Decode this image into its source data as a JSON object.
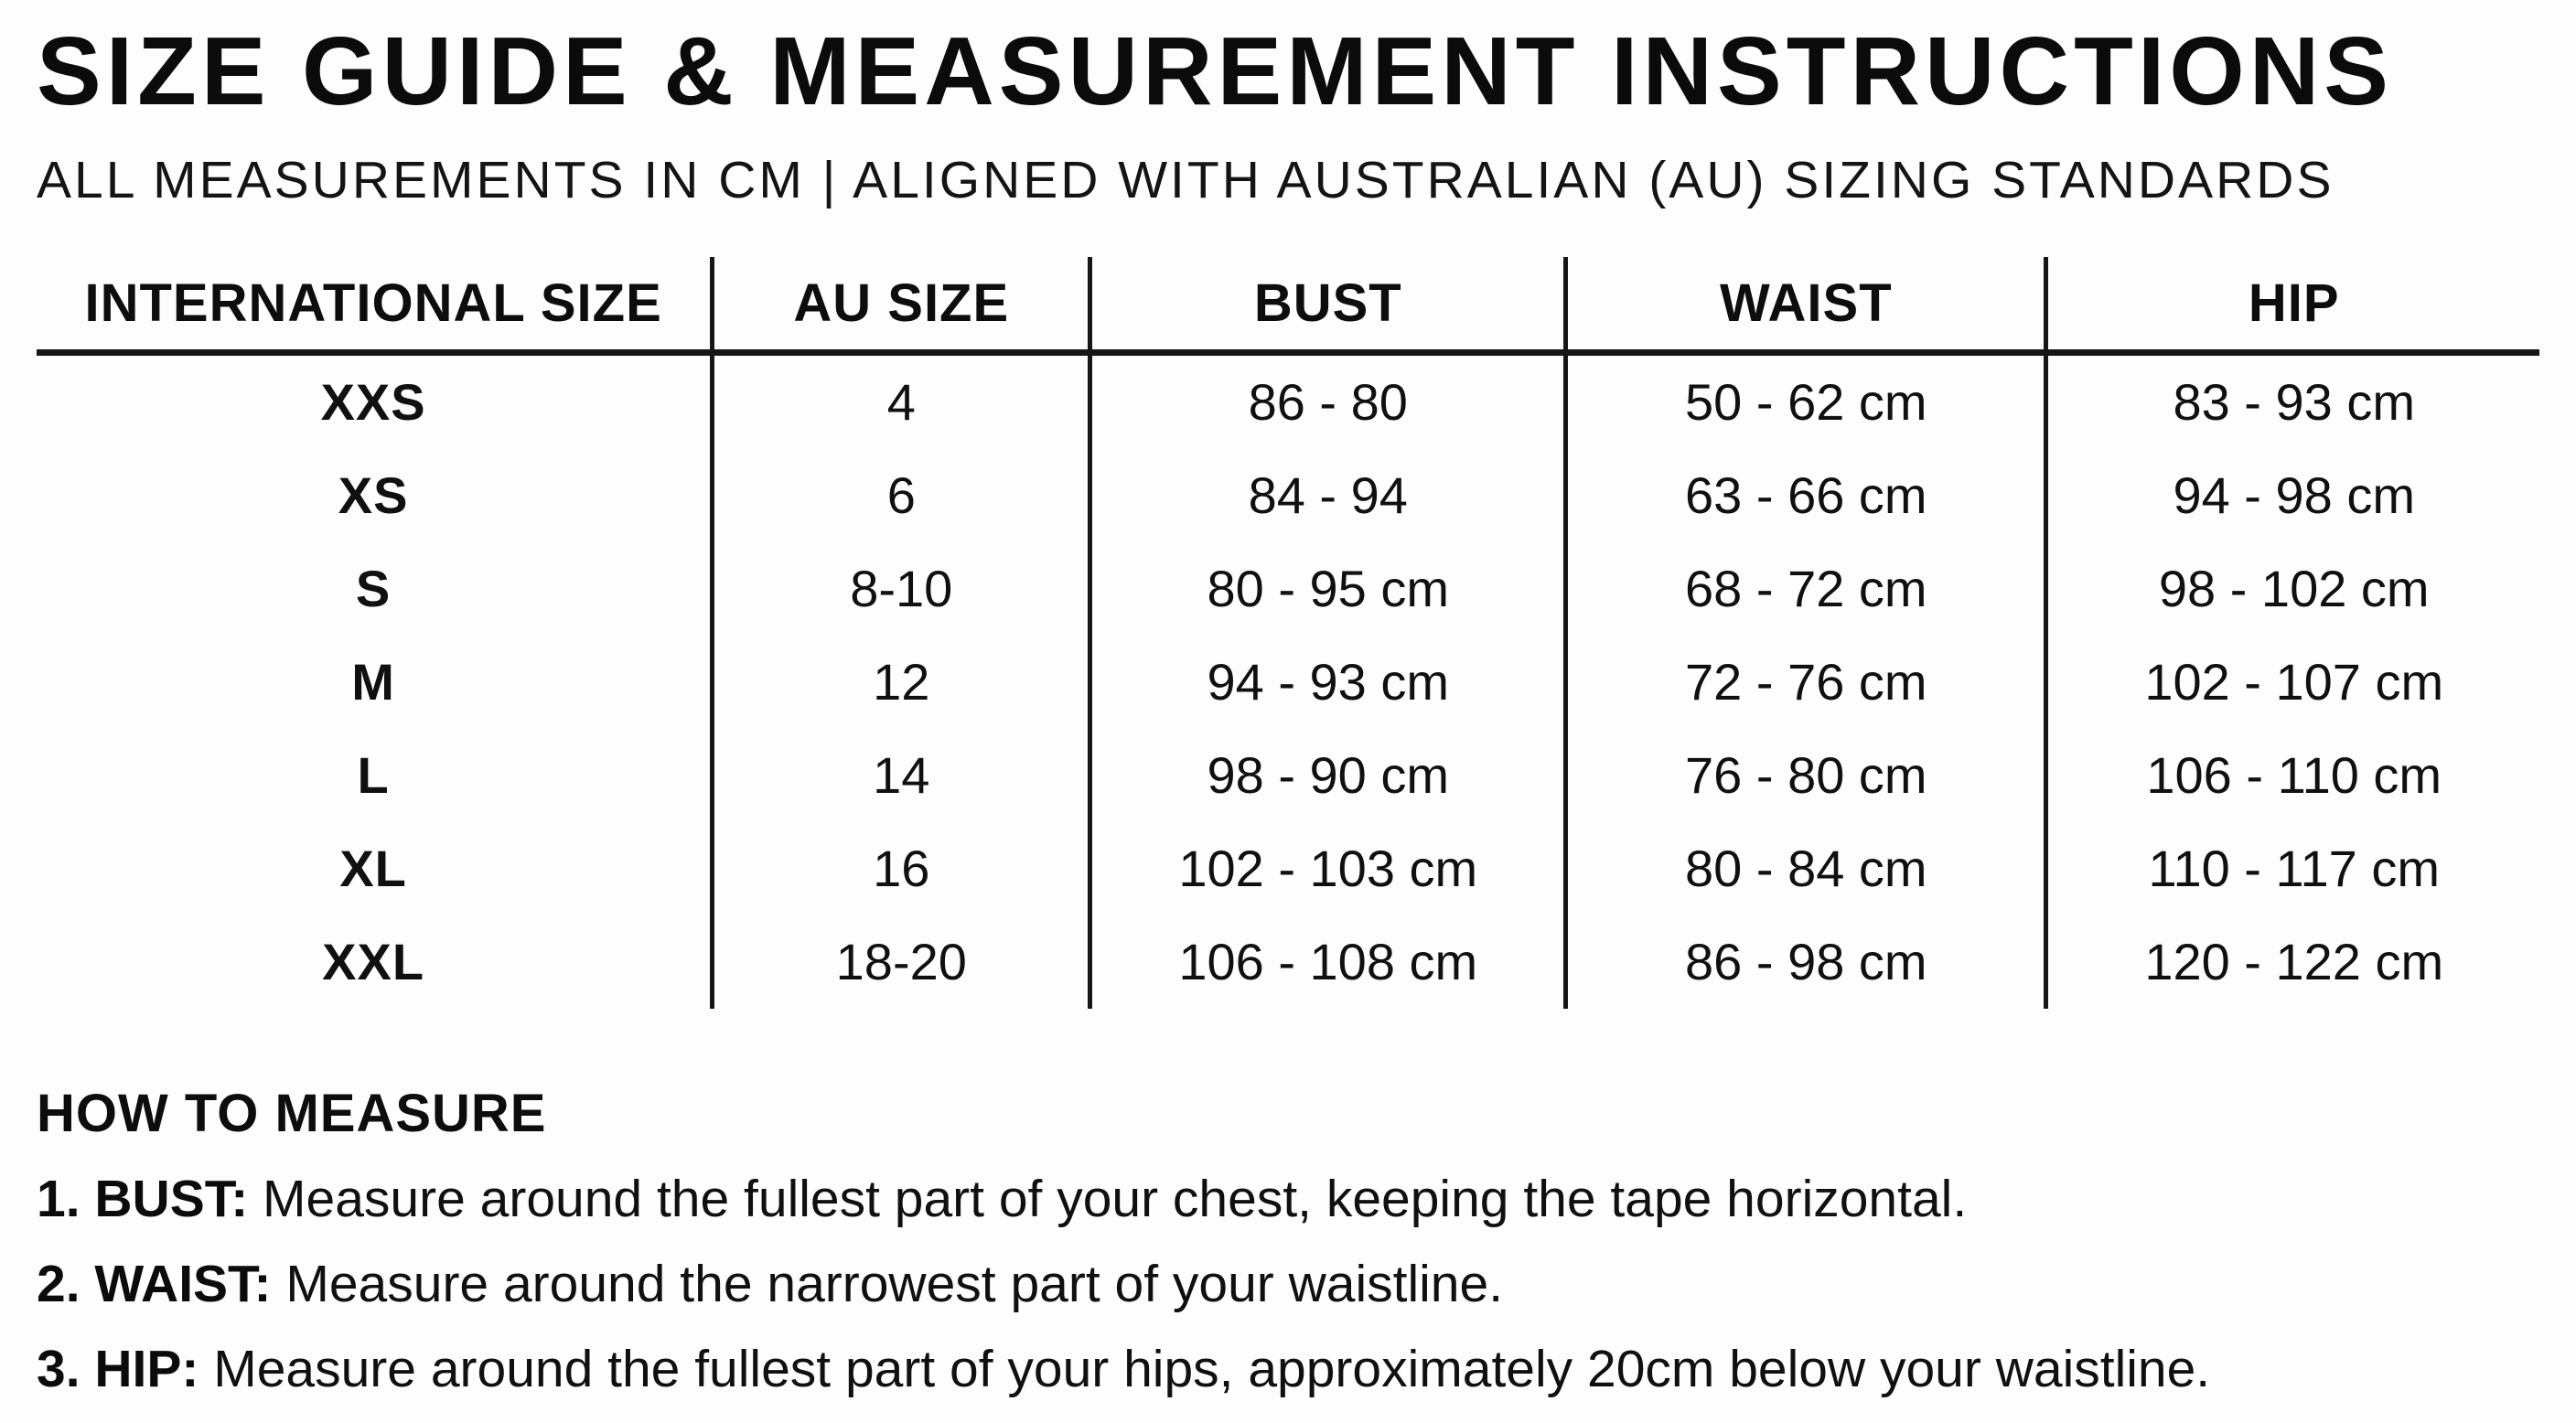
{
  "header": {
    "title": "SIZE GUIDE & MEASUREMENT INSTRUCTIONS",
    "subtitle": "ALL MEASUREMENTS IN CM | ALIGNED WITH AUSTRALIAN (AU) SIZING STANDARDS"
  },
  "size_table": {
    "columns": [
      "INTERNATIONAL SIZE",
      "AU SIZE",
      "BUST",
      "WAIST",
      "HIP"
    ],
    "rows": [
      [
        "XXS",
        "4",
        "86 - 80",
        "50 - 62 cm",
        "83 - 93 cm"
      ],
      [
        "XS",
        "6",
        "84 - 94",
        "63 - 66 cm",
        "94 - 98 cm"
      ],
      [
        "S",
        "8-10",
        "80 - 95 cm",
        "68 - 72 cm",
        "98 - 102 cm"
      ],
      [
        "M",
        "12",
        "94 - 93 cm",
        "72 - 76 cm",
        "102 - 107 cm"
      ],
      [
        "L",
        "14",
        "98 - 90 cm",
        "76 - 80 cm",
        "106 - 110 cm"
      ],
      [
        "XL",
        "16",
        "102 - 103 cm",
        "80 - 84 cm",
        "110 - 117 cm"
      ],
      [
        "XXL",
        "18-20",
        "106 - 108 cm",
        "86 - 98 cm",
        "120 - 122 cm"
      ]
    ]
  },
  "how_to_measure": {
    "heading": "HOW TO MEASURE",
    "steps": [
      {
        "label": "1. BUST:",
        "text": " Measure around the fullest part of your chest, keeping the tape horizontal."
      },
      {
        "label": "2. WAIST:",
        "text": " Measure around the narrowest part of your waistline."
      },
      {
        "label": "3. HIP:",
        "text": " Measure around the fullest part of your hips, approximately 20cm below your waistline."
      }
    ]
  },
  "colors": {
    "background": "#fdfdfd",
    "text": "#0f0f0f",
    "line": "#161616"
  }
}
